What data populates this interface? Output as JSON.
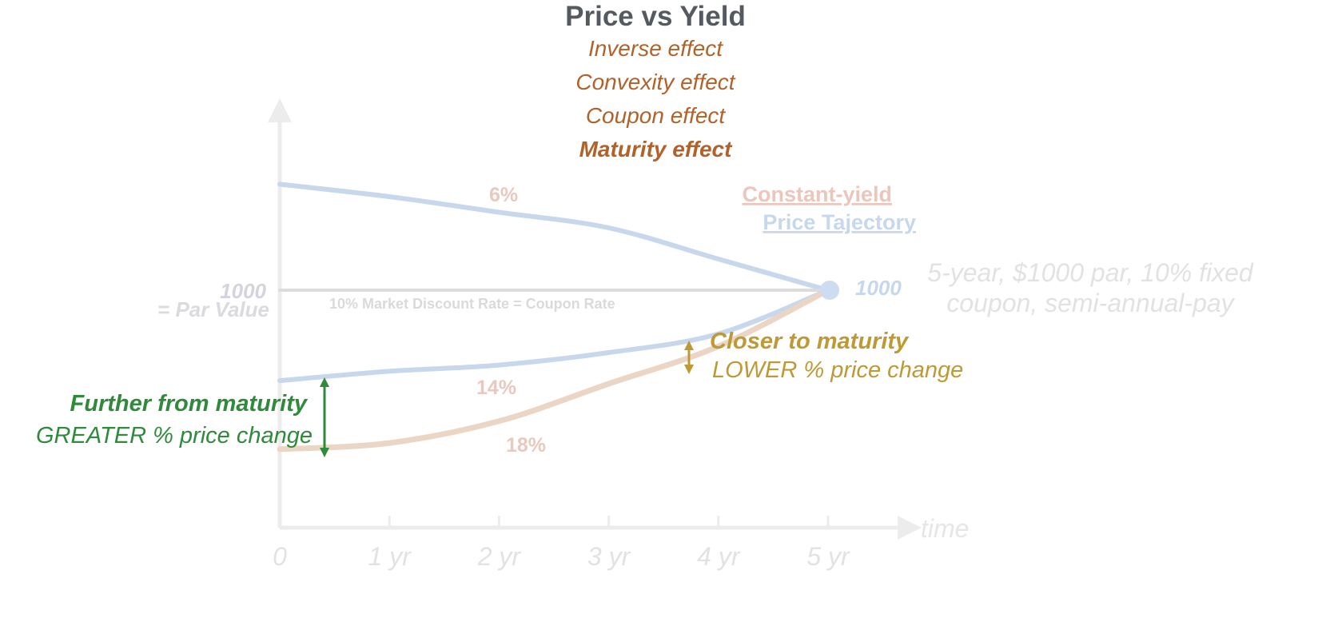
{
  "title": "Price vs Yield",
  "effects": [
    "Inverse effect",
    "Convexity effect",
    "Coupon effect",
    "Maturity effect"
  ],
  "axis": {
    "x_label": "time",
    "ticks": [
      "0",
      "1 yr",
      "2 yr",
      "3 yr",
      "4 yr",
      "5 yr"
    ]
  },
  "par": {
    "value": "1000",
    "label": "= Par Value",
    "end_value": "1000",
    "line_label": "10% Market Discount Rate = Coupon Rate"
  },
  "description": {
    "line1": "5-year, $1000 par, 10% fixed",
    "line2": "coupon, semi-annual-pay"
  },
  "legend": {
    "line1": "Constant-yield",
    "line2": "Price Tajectory"
  },
  "annotations": {
    "closer_title": "Closer to maturity",
    "closer_text": "LOWER % price change",
    "further_title": "Further from maturity",
    "further_text": "GREATER % price change"
  },
  "chart_data": {
    "type": "line",
    "x": [
      0,
      1,
      2,
      3,
      4,
      5
    ],
    "series": [
      {
        "name": "6%",
        "values": [
          1170,
          1150,
          1125,
          1100,
          1050,
          1000
        ]
      },
      {
        "name": "10%",
        "values": [
          1000,
          1000,
          1000,
          1000,
          1000,
          1000
        ]
      },
      {
        "name": "14%",
        "values": [
          855,
          870,
          880,
          900,
          930,
          1000
        ]
      },
      {
        "name": "18%",
        "values": [
          745,
          755,
          790,
          850,
          910,
          1000
        ]
      }
    ],
    "colors": {
      "6%": "#c7d7ec",
      "10%": "#dcdcdc",
      "14%": "#c7d7ec",
      "18%": "#ebd5c5",
      "closer": "#bd9a35",
      "further": "#2f8a3b",
      "effects": "#b0622a",
      "title": "#555a60"
    },
    "grid": false
  }
}
